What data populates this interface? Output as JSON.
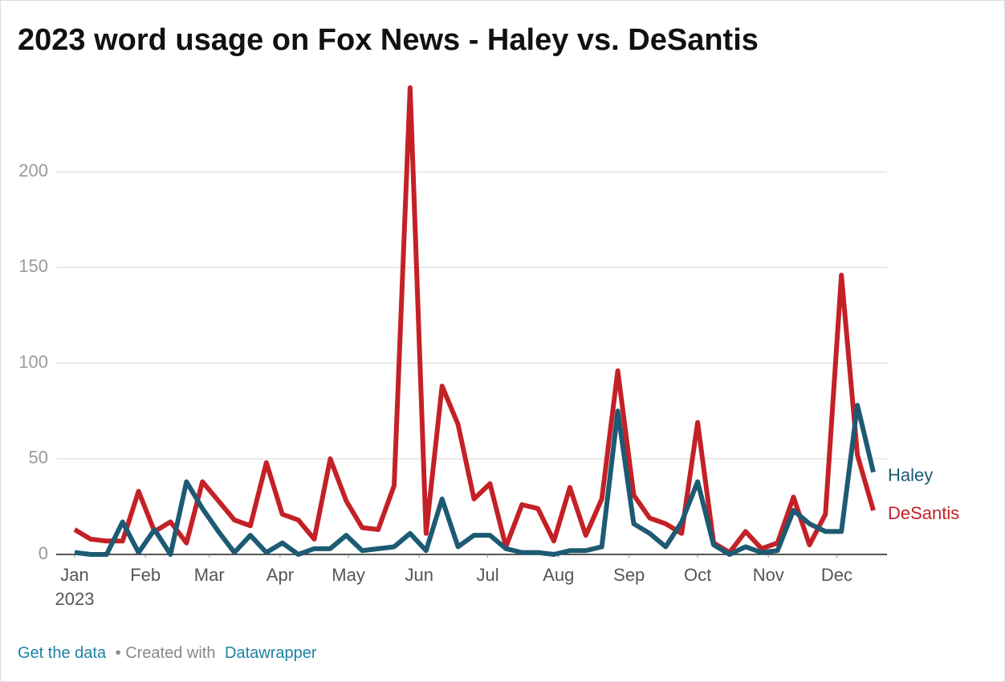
{
  "chart_data": {
    "type": "line",
    "title": "2023 word usage on Fox News - Haley vs. DeSantis",
    "x": [
      0,
      1,
      2,
      3,
      4,
      5,
      6,
      7,
      8,
      9,
      10,
      11,
      12,
      13,
      14,
      15,
      16,
      17,
      18,
      19,
      20,
      21,
      22,
      23,
      24,
      25,
      26,
      27,
      28,
      29,
      30,
      31,
      32,
      33,
      34,
      35,
      36,
      37,
      38,
      39,
      40,
      41,
      42,
      43,
      44,
      45,
      46,
      47,
      48,
      49,
      50
    ],
    "xlim": [
      0,
      50
    ],
    "xticks": [
      {
        "value": 0,
        "label": "Jan"
      },
      {
        "value": 4.43,
        "label": "Feb"
      },
      {
        "value": 8.43,
        "label": "Mar"
      },
      {
        "value": 12.86,
        "label": "Apr"
      },
      {
        "value": 17.14,
        "label": "May"
      },
      {
        "value": 21.57,
        "label": "Jun"
      },
      {
        "value": 25.86,
        "label": "Jul"
      },
      {
        "value": 30.29,
        "label": "Aug"
      },
      {
        "value": 34.71,
        "label": "Sep"
      },
      {
        "value": 39,
        "label": "Oct"
      },
      {
        "value": 43.43,
        "label": "Nov"
      },
      {
        "value": 47.71,
        "label": "Dec"
      }
    ],
    "x_year_label": "2023",
    "ylim": [
      0,
      250
    ],
    "yticks": [
      0,
      50,
      100,
      150,
      200
    ],
    "grid": true,
    "series": [
      {
        "name": "Haley",
        "color": "#1d5a73",
        "values": [
          1,
          0,
          0,
          17,
          1,
          13,
          0,
          38,
          24,
          12,
          1,
          10,
          1,
          6,
          0,
          3,
          3,
          10,
          2,
          3,
          4,
          11,
          2,
          29,
          4,
          10,
          10,
          3,
          1,
          1,
          0,
          2,
          2,
          4,
          75,
          16,
          11,
          4,
          17,
          38,
          5,
          0,
          4,
          1,
          2,
          23,
          16,
          12,
          12,
          78,
          43
        ]
      },
      {
        "name": "DeSantis",
        "color": "#c42126",
        "values": [
          13,
          8,
          7,
          7,
          33,
          12,
          17,
          6,
          38,
          28,
          18,
          15,
          48,
          21,
          18,
          8,
          50,
          28,
          14,
          13,
          36,
          244,
          11,
          88,
          68,
          29,
          37,
          4,
          26,
          24,
          7,
          35,
          10,
          29,
          96,
          31,
          19,
          16,
          11,
          69,
          6,
          1,
          12,
          3,
          6,
          30,
          5,
          21,
          146,
          52,
          23
        ]
      }
    ],
    "footer": {
      "link1": "Get the data",
      "separator": "• Created with",
      "link2": "Datawrapper"
    }
  }
}
